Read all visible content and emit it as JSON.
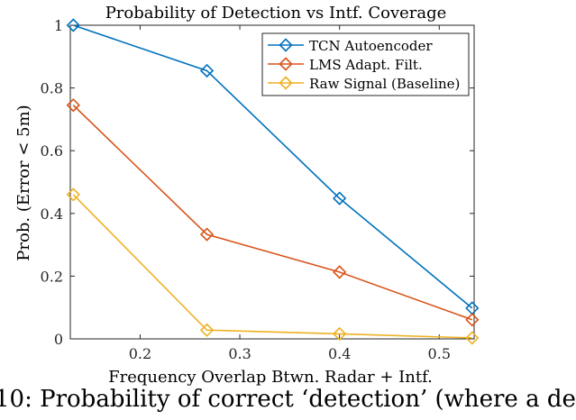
{
  "chart_data": {
    "type": "line",
    "title": "Probability of Detection vs Intf. Coverage",
    "xlabel": "Frequency Overlap Btwn. Radar + Intf.",
    "ylabel": "Prob. (Error < 5m)",
    "xlim": [
      0.13,
      0.535
    ],
    "ylim": [
      0,
      1
    ],
    "xticks": [
      0.2,
      0.3,
      0.4,
      0.5
    ],
    "xtick_labels": [
      "0.2",
      "0.3",
      "0.4",
      "0.5"
    ],
    "yticks": [
      0,
      0.2,
      0.4,
      0.6,
      0.8,
      1
    ],
    "ytick_labels": [
      "0",
      "0.2",
      "0.4",
      "0.6",
      "0.8",
      "1"
    ],
    "grid": false,
    "legend_position": "top-right",
    "marker": "diamond",
    "x": [
      0.133,
      0.267,
      0.4,
      0.533
    ],
    "series": [
      {
        "name": "TCN Autoencoder",
        "color": "#0072BD",
        "values": [
          1.0,
          0.855,
          0.448,
          0.098
        ]
      },
      {
        "name": "LMS Adapt. Filt.",
        "color": "#D95319",
        "values": [
          0.745,
          0.333,
          0.213,
          0.061
        ]
      },
      {
        "name": "Raw Signal (Baseline)",
        "color": "#EDB120",
        "values": [
          0.46,
          0.028,
          0.016,
          0.003
        ]
      }
    ]
  },
  "caption": "10: Probability of correct ‘detection’ (where a de"
}
